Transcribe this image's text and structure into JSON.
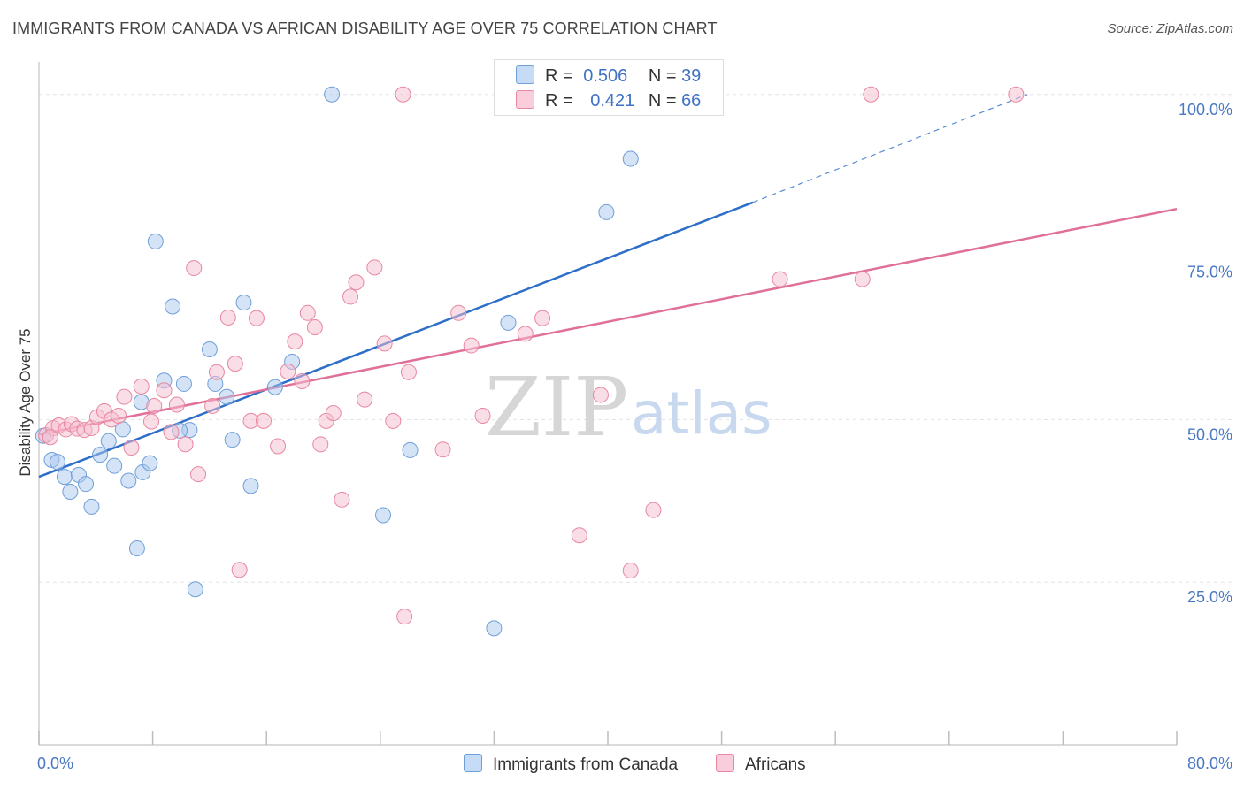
{
  "title": "IMMIGRANTS FROM CANADA VS AFRICAN DISABILITY AGE OVER 75 CORRELATION CHART",
  "source": "Source: ZipAtlas.com",
  "watermark": {
    "zip": "ZIP",
    "atlas": "atlas"
  },
  "legend": {
    "r_label": "R =",
    "n_label": "N =",
    "rows": [
      {
        "r": "0.506",
        "n": "39"
      },
      {
        "r": "0.421",
        "n": "66"
      }
    ]
  },
  "chart_data": {
    "type": "scatter",
    "title": "IMMIGRANTS FROM CANADA VS AFRICAN DISABILITY AGE OVER 75 CORRELATION CHART",
    "xlabel": "",
    "ylabel": "Disability Age Over 75",
    "xlim": [
      0,
      80
    ],
    "ylim": [
      0,
      105
    ],
    "x_tick_labels": [
      "0.0%",
      "80.0%"
    ],
    "y_ticks": [
      25,
      50,
      75,
      100
    ],
    "y_tick_labels": [
      "25.0%",
      "50.0%",
      "75.0%",
      "100.0%"
    ],
    "grid": true,
    "legend_position": "bottom",
    "series": [
      {
        "name": "Immigrants from Canada",
        "color": "#aac8ee",
        "stroke": "#6f9fd9",
        "line_color": "#2d6fc8",
        "trend": {
          "x0": 0,
          "y0": 41.2,
          "x1": 50.2,
          "y1": 83.4,
          "dashed_to_x": 69.5,
          "dashed_to_y": 100.0
        },
        "points": [
          [
            0.3,
            47.5
          ],
          [
            0.9,
            43.8
          ],
          [
            1.3,
            43.5
          ],
          [
            1.8,
            41.2
          ],
          [
            2.2,
            38.9
          ],
          [
            2.8,
            41.5
          ],
          [
            3.3,
            40.1
          ],
          [
            3.7,
            36.6
          ],
          [
            4.3,
            44.6
          ],
          [
            4.9,
            46.7
          ],
          [
            5.3,
            42.9
          ],
          [
            5.9,
            48.5
          ],
          [
            6.3,
            40.6
          ],
          [
            6.9,
            30.2
          ],
          [
            7.3,
            41.9
          ],
          [
            7.8,
            43.3
          ],
          [
            8.2,
            77.4
          ],
          [
            9.4,
            67.4
          ],
          [
            8.8,
            56.0
          ],
          [
            10.2,
            55.5
          ],
          [
            10.6,
            48.4
          ],
          [
            11.0,
            23.9
          ],
          [
            12.0,
            60.8
          ],
          [
            12.4,
            55.5
          ],
          [
            13.2,
            53.5
          ],
          [
            13.6,
            46.9
          ],
          [
            14.4,
            68.0
          ],
          [
            14.9,
            39.8
          ],
          [
            16.6,
            55.0
          ],
          [
            17.8,
            58.9
          ],
          [
            20.6,
            100.0
          ],
          [
            24.2,
            35.3
          ],
          [
            26.1,
            45.3
          ],
          [
            32.0,
            17.9
          ],
          [
            33.0,
            64.9
          ],
          [
            39.9,
            81.9
          ],
          [
            41.6,
            90.1
          ],
          [
            7.2,
            52.7
          ],
          [
            9.9,
            48.3
          ]
        ]
      },
      {
        "name": "Africans",
        "color": "#f6bdd0",
        "stroke": "#e8879f",
        "line_color": "#e0709a",
        "trend": {
          "x0": 0,
          "y0": 47.7,
          "x1": 80,
          "y1": 82.4
        },
        "points": [
          [
            0.5,
            47.6
          ],
          [
            1.0,
            48.7
          ],
          [
            1.4,
            49.1
          ],
          [
            1.9,
            48.5
          ],
          [
            2.3,
            49.3
          ],
          [
            2.7,
            48.6
          ],
          [
            3.2,
            48.4
          ],
          [
            3.7,
            48.7
          ],
          [
            4.1,
            50.4
          ],
          [
            4.6,
            51.3
          ],
          [
            5.1,
            50.0
          ],
          [
            5.6,
            50.6
          ],
          [
            6.0,
            53.5
          ],
          [
            6.5,
            45.7
          ],
          [
            7.2,
            55.1
          ],
          [
            7.9,
            49.7
          ],
          [
            8.1,
            52.1
          ],
          [
            8.8,
            54.5
          ],
          [
            9.3,
            48.1
          ],
          [
            9.7,
            52.3
          ],
          [
            10.3,
            46.2
          ],
          [
            10.9,
            73.3
          ],
          [
            11.2,
            41.6
          ],
          [
            12.2,
            52.1
          ],
          [
            12.5,
            57.3
          ],
          [
            13.3,
            65.7
          ],
          [
            13.8,
            58.6
          ],
          [
            14.1,
            26.9
          ],
          [
            14.9,
            49.8
          ],
          [
            15.3,
            65.6
          ],
          [
            15.8,
            49.8
          ],
          [
            16.8,
            45.9
          ],
          [
            17.5,
            57.4
          ],
          [
            18.0,
            62.0
          ],
          [
            18.5,
            55.9
          ],
          [
            18.9,
            66.4
          ],
          [
            19.4,
            64.2
          ],
          [
            19.8,
            46.2
          ],
          [
            20.2,
            49.8
          ],
          [
            20.7,
            51.0
          ],
          [
            21.3,
            37.7
          ],
          [
            21.9,
            68.9
          ],
          [
            22.3,
            71.1
          ],
          [
            22.9,
            53.1
          ],
          [
            23.6,
            73.4
          ],
          [
            24.3,
            61.7
          ],
          [
            24.9,
            49.8
          ],
          [
            25.6,
            100.0
          ],
          [
            25.7,
            19.7
          ],
          [
            26.0,
            57.3
          ],
          [
            28.4,
            45.4
          ],
          [
            29.5,
            66.4
          ],
          [
            30.4,
            61.4
          ],
          [
            31.2,
            50.6
          ],
          [
            32.9,
            100.0
          ],
          [
            34.2,
            63.2
          ],
          [
            35.4,
            65.6
          ],
          [
            38.0,
            32.2
          ],
          [
            39.5,
            53.8
          ],
          [
            41.6,
            26.8
          ],
          [
            43.2,
            36.1
          ],
          [
            52.1,
            71.6
          ],
          [
            57.9,
            71.6
          ],
          [
            58.5,
            100.0
          ],
          [
            68.7,
            100.0
          ],
          [
            0.8,
            47.3
          ]
        ]
      }
    ]
  }
}
